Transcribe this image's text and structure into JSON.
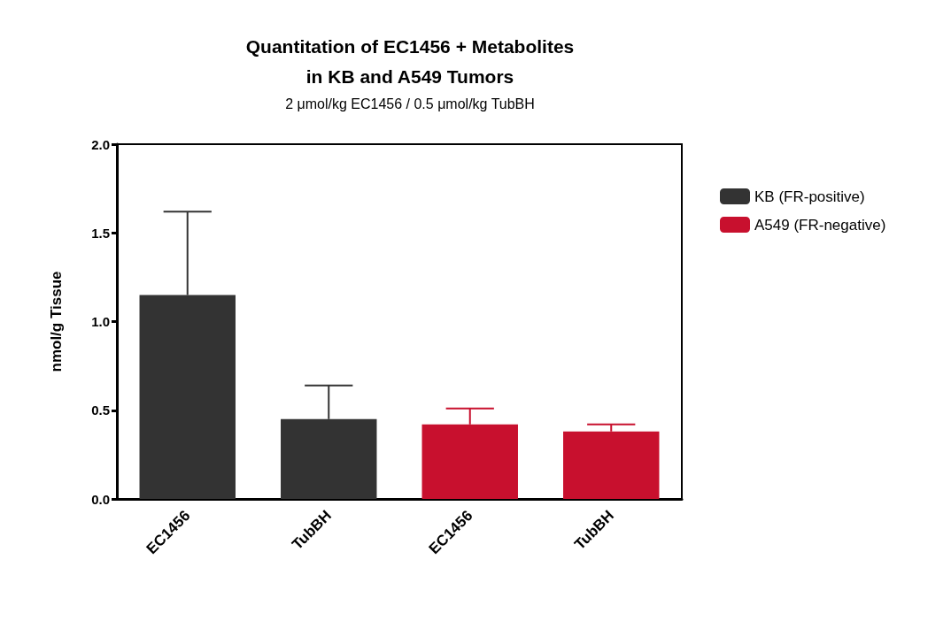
{
  "chart_data": {
    "type": "bar",
    "title": "Quantitation of EC1456 + Metabolites\nin KB and A549 Tumors",
    "subtitle": "2 μmol/kg EC1456 / 0.5 μmol/kg TubBH",
    "ylabel": "nmol/g Tissue",
    "categories": [
      "EC1456",
      "TubBH",
      "EC1456",
      "TubBH"
    ],
    "series": [
      {
        "name": "KB (FR-positive)",
        "color": "#333333",
        "values": [
          1.15,
          0.45,
          null,
          null
        ],
        "errors": [
          0.47,
          0.19,
          null,
          null
        ]
      },
      {
        "name": "A549 (FR-negative)",
        "color": "#c8102e",
        "values": [
          null,
          null,
          0.42,
          0.38
        ],
        "errors": [
          null,
          null,
          0.09,
          0.04
        ]
      }
    ],
    "ylim": [
      0,
      2
    ],
    "yticks": [
      {
        "value": 0,
        "label": "0.0"
      },
      {
        "value": 0.5,
        "label": "0.5"
      },
      {
        "value": 1,
        "label": "1.0"
      },
      {
        "value": 1.5,
        "label": "1.5"
      },
      {
        "value": 2,
        "label": "2.0"
      }
    ],
    "grid": false,
    "legend": "top right"
  }
}
